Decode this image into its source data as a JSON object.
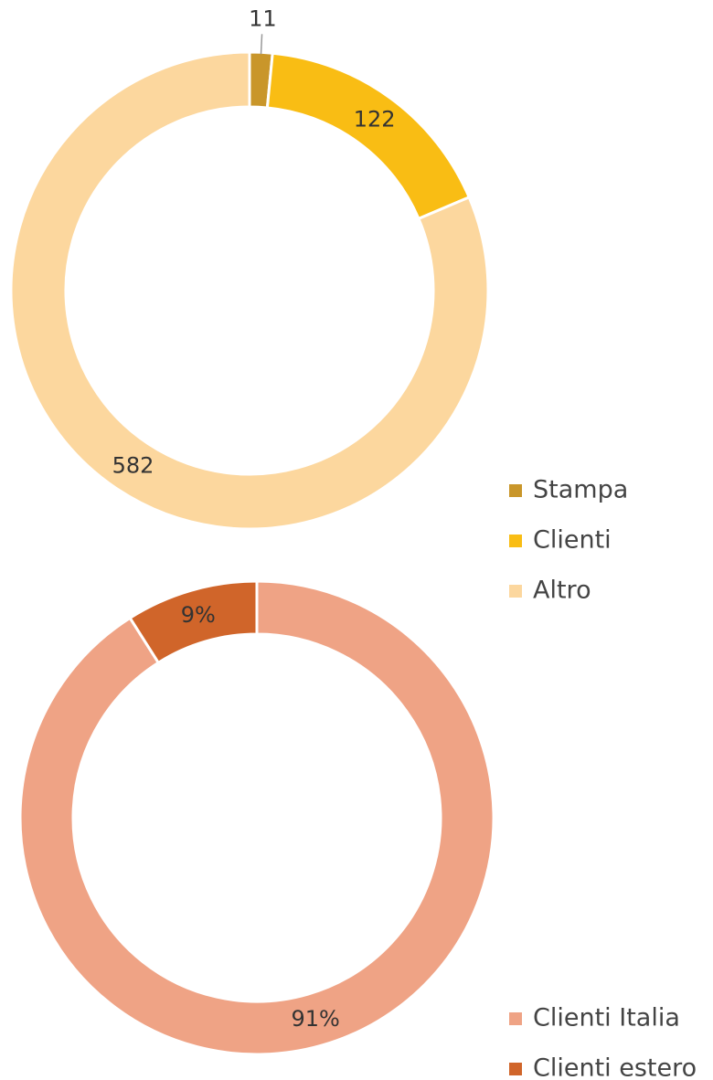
{
  "chart_data": [
    {
      "type": "donut",
      "categories": [
        "Stampa",
        "Clienti",
        "Altro"
      ],
      "values": [
        11,
        122,
        582
      ],
      "colors": [
        "#c9962a",
        "#f9bd14",
        "#fcd79e"
      ]
    },
    {
      "type": "donut",
      "categories": [
        "Clienti Italia",
        "Clienti estero"
      ],
      "values": [
        91,
        9
      ],
      "value_labels": [
        "91%",
        "9%"
      ],
      "colors": [
        "#efa385",
        "#d0652a"
      ]
    }
  ]
}
